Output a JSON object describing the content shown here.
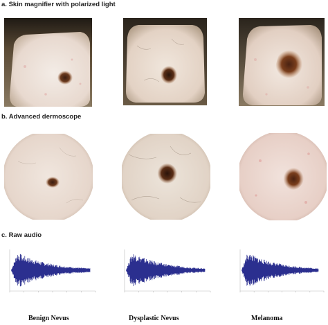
{
  "sections": {
    "a": {
      "label": "a.",
      "title": "Skin magnifier with polarized light"
    },
    "b": {
      "label": "b.",
      "title": "Advanced dermoscope"
    },
    "c": {
      "label": "c.",
      "title": "Raw audio"
    }
  },
  "captions": [
    "Benign Nevus",
    "Dysplastic Nevus",
    "Melanoma"
  ],
  "colors": {
    "waveform": "#2b2f8f",
    "skin_light": "#efe6df",
    "lesion_dark": "#3b1f12",
    "lesion_brown": "#6b3a1e",
    "vignette": "#1f1a14"
  }
}
